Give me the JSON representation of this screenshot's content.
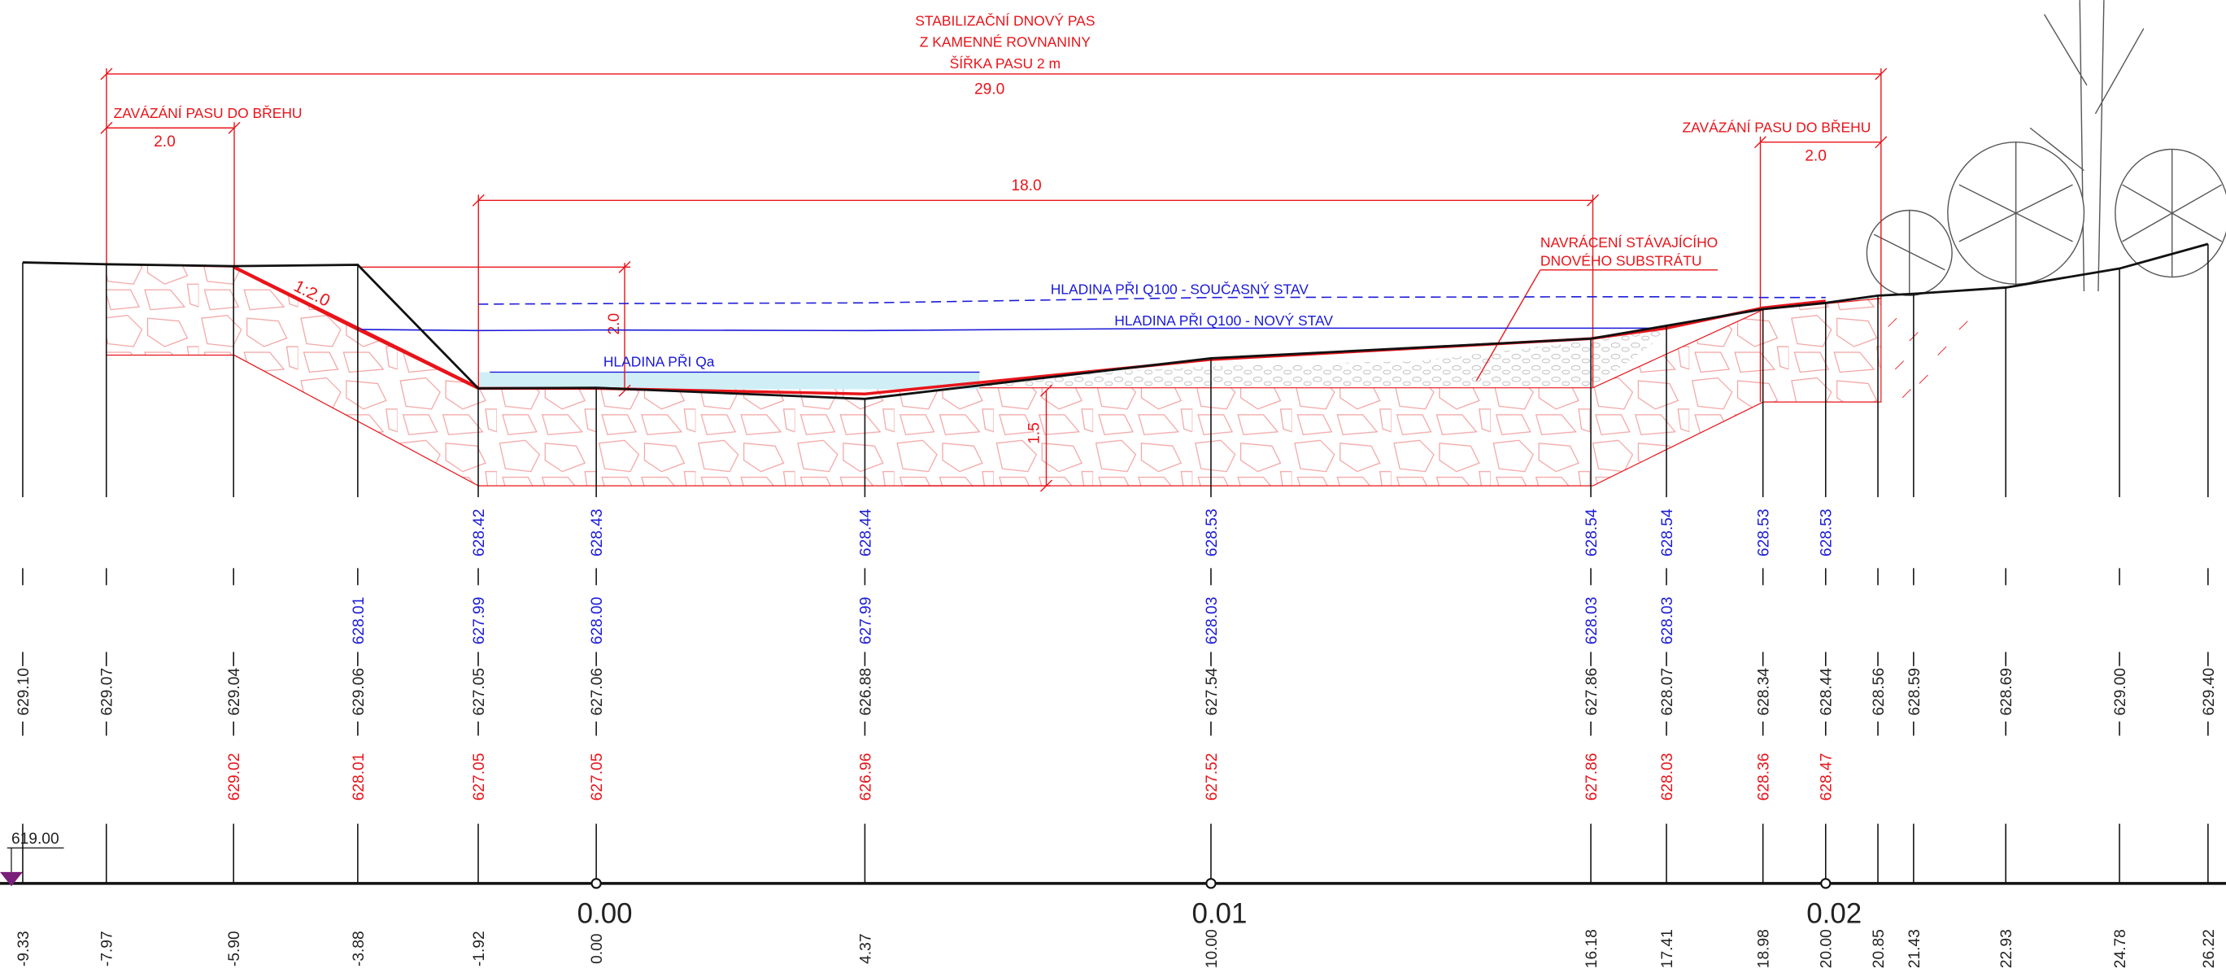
{
  "title_lines": [
    "STABILIZAČNÍ DNOVÝ PAS",
    "Z KAMENNÉ ROVNANINY",
    "ŠÍŘKA PASU 2 m"
  ],
  "dimensions": {
    "total": "29.0",
    "bottom": "18.0",
    "left_tie": "2.0",
    "right_tie": "2.0",
    "bank_depth": "2.0",
    "sill_depth": "1.5",
    "slope": "1:2.0"
  },
  "notes": {
    "left_tie": "ZAVÁZÁNÍ PASU DO BŘEHU",
    "right_tie": "ZAVÁZÁNÍ PASU DO BŘEHU",
    "substrate": [
      "NAVRÁCENÍ STÁVAJÍCÍHO",
      "DNOVÉHO SUBSTRÁTU"
    ],
    "q100_current": "HLADINA PŘI Q100 - SOUČASNÝ STAV",
    "q100_new": "HLADINA PŘI Q100 - NOVÝ STAV",
    "qa": "HLADINA PŘI Qa"
  },
  "datum": "619.00",
  "chainage": [
    "0.00",
    "0.01",
    "0.02"
  ],
  "stations": [
    {
      "offset": "-9.33",
      "terrain": "629.10",
      "design": null,
      "water_new": null,
      "water_current": null
    },
    {
      "offset": "-7.97",
      "terrain": "629.07",
      "design": null,
      "water_new": null,
      "water_current": null
    },
    {
      "offset": "-5.90",
      "terrain": "629.04",
      "design": "629.02",
      "water_new": null,
      "water_current": null
    },
    {
      "offset": "-3.88",
      "terrain": "629.06",
      "design": "628.01",
      "water_new": "628.01",
      "water_current": null
    },
    {
      "offset": "-1.92",
      "terrain": "627.05",
      "design": "627.05",
      "water_new": "627.99",
      "water_current": "628.42"
    },
    {
      "offset": "0.00",
      "terrain": "627.06",
      "design": "627.05",
      "water_new": "628.00",
      "water_current": "628.43"
    },
    {
      "offset": "4.37",
      "terrain": "626.88",
      "design": "626.96",
      "water_new": "627.99",
      "water_current": "628.44"
    },
    {
      "offset": "10.00",
      "terrain": "627.54",
      "design": "627.52",
      "water_new": "628.03",
      "water_current": "628.53"
    },
    {
      "offset": "16.18",
      "terrain": "627.86",
      "design": "627.86",
      "water_new": "628.03",
      "water_current": "628.54"
    },
    {
      "offset": "17.41",
      "terrain": "628.07",
      "design": "628.03",
      "water_new": "628.03",
      "water_current": "628.54"
    },
    {
      "offset": "18.98",
      "terrain": "628.34",
      "design": "628.36",
      "water_new": null,
      "water_current": "628.53"
    },
    {
      "offset": "20.00",
      "terrain": "628.44",
      "design": "628.47",
      "water_new": null,
      "water_current": "628.53"
    },
    {
      "offset": "20.85",
      "terrain": "628.56",
      "design": null,
      "water_new": null,
      "water_current": null
    },
    {
      "offset": "21.43",
      "terrain": "628.59",
      "design": null,
      "water_new": null,
      "water_current": null
    },
    {
      "offset": "22.93",
      "terrain": "628.69",
      "design": null,
      "water_new": null,
      "water_current": null
    },
    {
      "offset": "24.78",
      "terrain": "629.00",
      "design": null,
      "water_new": null,
      "water_current": null
    },
    {
      "offset": "26.22",
      "terrain": "629.40",
      "design": null,
      "water_new": null,
      "water_current": null
    }
  ]
}
